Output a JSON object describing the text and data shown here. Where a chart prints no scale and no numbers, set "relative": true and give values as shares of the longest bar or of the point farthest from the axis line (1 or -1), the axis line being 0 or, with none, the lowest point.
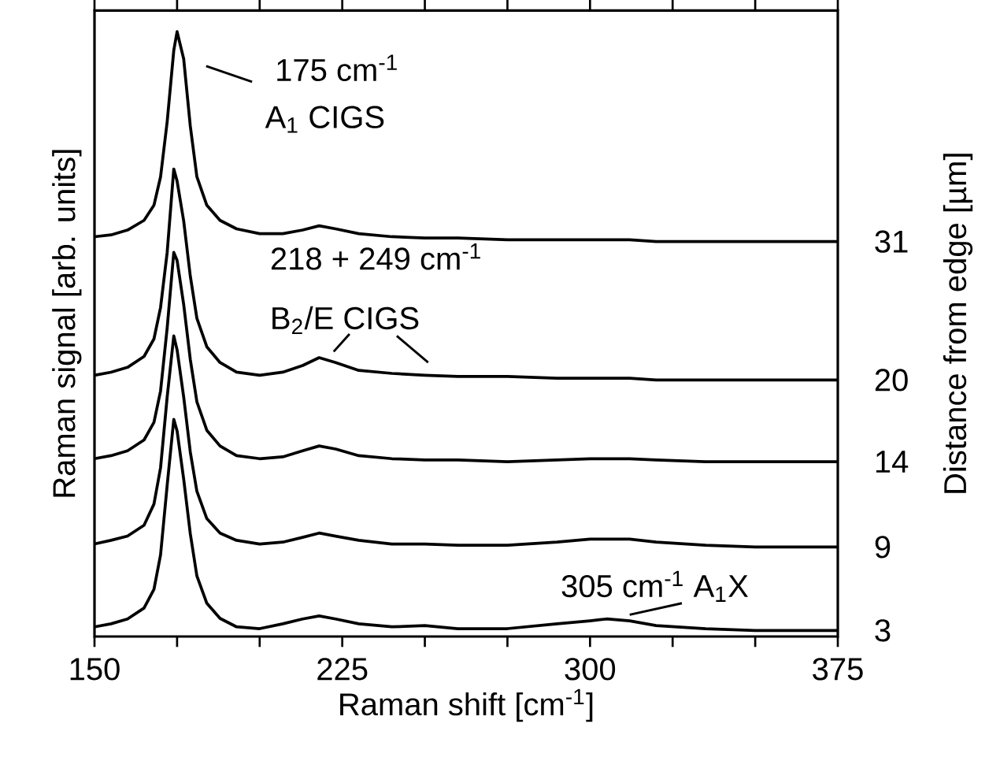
{
  "chart_data": {
    "type": "line",
    "relative": true,
    "xlabel": "Raman shift [cm$^{-1}$]",
    "ylabel": "Raman signal [arb. units]",
    "y2label": "Distance from edge [µm]",
    "annotations": [
      "175 cm$^{-1}$",
      "A$_{1}$ CIGS",
      "218 + 249 cm$^{-1}$",
      "B$_{2}$/E CIGS",
      "305 cm$^{-1}$ A$_{1}$X"
    ],
    "xlim": [
      150,
      375
    ],
    "xticks": [
      150,
      {
        "value": 175,
        "label": null
      },
      {
        "value": 200,
        "label": null
      },
      225,
      {
        "value": 250,
        "label": null
      },
      {
        "value": 275,
        "label": null
      },
      300,
      {
        "value": 325,
        "label": null
      },
      {
        "value": 350,
        "label": null
      },
      375
    ],
    "x": [
      150,
      155,
      160,
      165,
      168,
      170,
      172,
      174,
      175,
      177,
      179,
      181,
      184,
      188,
      193,
      200,
      207,
      213,
      218,
      223,
      230,
      240,
      250,
      260,
      275,
      290,
      300,
      305,
      312,
      320,
      335,
      350,
      365,
      375
    ],
    "grid": false,
    "marker": "none",
    "line_style": "solid",
    "series": [
      {
        "name": "31",
        "color": "#000000",
        "values": [
          0.661,
          0.664,
          0.672,
          0.688,
          0.713,
          0.76,
          0.851,
          0.969,
          1.0,
          0.955,
          0.844,
          0.76,
          0.713,
          0.688,
          0.674,
          0.666,
          0.666,
          0.672,
          0.679,
          0.674,
          0.666,
          0.661,
          0.659,
          0.659,
          0.656,
          0.656,
          0.656,
          0.656,
          0.656,
          0.653,
          0.653,
          0.653,
          0.653,
          0.653
        ]
      },
      {
        "name": "20",
        "color": "#000000",
        "values": [
          0.432,
          0.437,
          0.445,
          0.463,
          0.492,
          0.544,
          0.635,
          0.773,
          0.753,
          0.687,
          0.596,
          0.526,
          0.479,
          0.453,
          0.437,
          0.432,
          0.437,
          0.448,
          0.461,
          0.453,
          0.44,
          0.435,
          0.432,
          0.43,
          0.43,
          0.427,
          0.427,
          0.427,
          0.427,
          0.424,
          0.424,
          0.424,
          0.424,
          0.424
        ]
      },
      {
        "name": "14",
        "color": "#000000",
        "values": [
          0.294,
          0.299,
          0.307,
          0.325,
          0.354,
          0.406,
          0.51,
          0.635,
          0.622,
          0.549,
          0.458,
          0.388,
          0.341,
          0.315,
          0.299,
          0.294,
          0.297,
          0.307,
          0.315,
          0.31,
          0.299,
          0.294,
          0.292,
          0.292,
          0.289,
          0.292,
          0.294,
          0.294,
          0.294,
          0.292,
          0.289,
          0.289,
          0.289,
          0.289
        ]
      },
      {
        "name": "9",
        "color": "#000000",
        "values": [
          0.153,
          0.159,
          0.166,
          0.184,
          0.219,
          0.279,
          0.396,
          0.497,
          0.474,
          0.396,
          0.305,
          0.24,
          0.195,
          0.171,
          0.159,
          0.153,
          0.156,
          0.164,
          0.171,
          0.166,
          0.159,
          0.153,
          0.153,
          0.151,
          0.151,
          0.156,
          0.161,
          0.161,
          0.161,
          0.156,
          0.151,
          0.148,
          0.148,
          0.148
        ]
      },
      {
        "name": "3",
        "color": "#000000",
        "values": [
          0.016,
          0.021,
          0.029,
          0.047,
          0.078,
          0.135,
          0.25,
          0.359,
          0.34,
          0.26,
          0.17,
          0.1,
          0.055,
          0.03,
          0.016,
          0.013,
          0.021,
          0.029,
          0.034,
          0.029,
          0.021,
          0.016,
          0.018,
          0.013,
          0.013,
          0.021,
          0.026,
          0.029,
          0.026,
          0.018,
          0.013,
          0.01,
          0.01,
          0.01
        ]
      }
    ]
  }
}
